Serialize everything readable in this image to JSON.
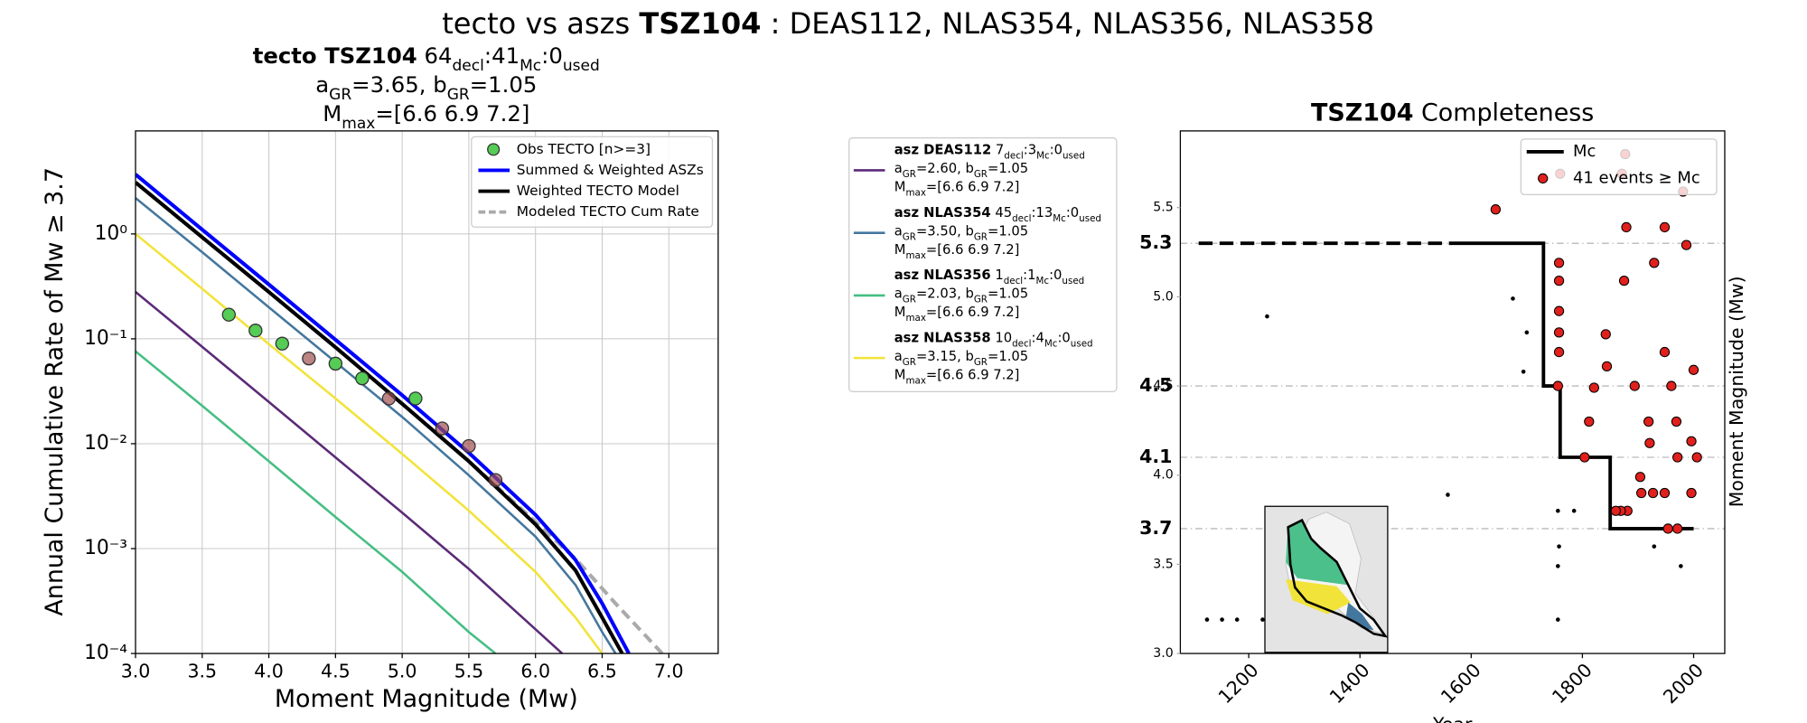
{
  "suptitle": [
    "tecto vs aszs ",
    {
      "b": "TSZ104"
    },
    " : DEAS112, NLAS354, NLAS356, NLAS358"
  ],
  "chart_data": [
    {
      "type": "line",
      "title": [
        [
          {
            "b": "tecto TSZ104"
          },
          "  64",
          {
            "sub": "decl"
          },
          ":41",
          {
            "sub": "Mc"
          },
          ":0",
          {
            "sub": "used"
          }
        ],
        [
          "a",
          {
            "sub": "GR"
          },
          "=3.65,  b",
          {
            "sub": "GR"
          },
          "=1.05"
        ],
        [
          "M",
          {
            "sub": "max"
          },
          "=[6.6 6.9 7.2]"
        ]
      ],
      "xlabel": "Moment Magnitude (Mw)",
      "ylabel": "Annual Cumulative Rate of Mw  ≥  3.7",
      "xlim": [
        3.0,
        7.37
      ],
      "ylim": [
        0.0001,
        9.6
      ],
      "log_y": true,
      "grid": true,
      "legend": "upper right",
      "xticks": [
        {
          "value": 3,
          "label": "3.0"
        },
        {
          "value": 3.5,
          "label": "3.5"
        },
        {
          "value": 4,
          "label": "4.0"
        },
        {
          "value": 4.5,
          "label": "4.5"
        },
        {
          "value": 5,
          "label": "5.0"
        },
        {
          "value": 5.5,
          "label": "5.5"
        },
        {
          "value": 6,
          "label": "6.0"
        },
        {
          "value": 6.5,
          "label": "6.5"
        },
        {
          "value": 7,
          "label": "7.0"
        }
      ],
      "yticks": [
        {
          "value": 0.0001,
          "label": "10⁻⁴"
        },
        {
          "value": 0.001,
          "label": "10⁻³"
        },
        {
          "value": 0.01,
          "label": "10⁻²"
        },
        {
          "value": 0.1,
          "label": "10⁻¹"
        },
        {
          "value": 1,
          "label": "10⁰"
        }
      ],
      "series": [
        {
          "name": "Obs TECTO [n>=3]",
          "kind": "scatter",
          "color": "#55cc55",
          "x": [
            3.7,
            3.9,
            4.1,
            4.5,
            4.7,
            5.1
          ],
          "values": [
            0.17,
            0.12,
            0.09,
            0.058,
            0.042,
            0.027
          ]
        },
        {
          "name": "Summed & Weighted ASZs",
          "kind": "line",
          "color": "#0000ff",
          "x": [
            3.0,
            3.5,
            4.0,
            4.5,
            5.0,
            5.5,
            6.0,
            6.3,
            6.5,
            6.7
          ],
          "values": [
            3.7,
            1.1,
            0.33,
            0.098,
            0.029,
            0.0082,
            0.0021,
            0.00078,
            0.0003,
            0.0001
          ]
        },
        {
          "name": "Weighted TECTO Model",
          "kind": "line",
          "color": "#000000",
          "x": [
            3.0,
            3.5,
            4.0,
            4.5,
            5.0,
            5.5,
            6.0,
            6.3,
            6.5,
            6.65
          ],
          "values": [
            3.1,
            0.93,
            0.28,
            0.083,
            0.024,
            0.0068,
            0.0017,
            0.00062,
            0.00022,
            0.0001
          ]
        },
        {
          "name": "Modeled TECTO Cum Rate",
          "kind": "line",
          "dash": true,
          "color": "#aaaaaa",
          "x": [
            3.0,
            3.5,
            4.0,
            4.5,
            5.0,
            5.5,
            6.0,
            6.3,
            6.6,
            6.95
          ],
          "values": [
            3.1,
            0.93,
            0.28,
            0.083,
            0.024,
            0.0068,
            0.0018,
            0.0008,
            0.0003,
            0.0001
          ]
        },
        {
          "kind": "scatter",
          "color": "#a05050",
          "x": [
            4.3,
            4.9,
            5.3,
            5.5,
            5.7
          ],
          "values": [
            0.065,
            0.027,
            0.014,
            0.0095,
            0.0045
          ]
        },
        {
          "legend": [
            [
              {
                "b": "asz DEAS112"
              },
              " 7",
              {
                "sub": "decl"
              },
              ":3",
              {
                "sub": "Mc"
              },
              ":0",
              {
                "sub": "used"
              }
            ],
            [
              "a",
              {
                "sub": "GR"
              },
              "=2.60,  b",
              {
                "sub": "GR"
              },
              "=1.05"
            ],
            [
              "M",
              {
                "sub": "max"
              },
              "=[6.6 6.9 7.2]"
            ]
          ],
          "kind": "line",
          "color": "#5b2a78",
          "x": [
            3.0,
            3.5,
            4.0,
            4.5,
            5.0,
            5.5,
            6.0,
            6.2
          ],
          "values": [
            0.28,
            0.084,
            0.025,
            0.0074,
            0.0022,
            0.00064,
            0.00017,
            0.0001
          ]
        },
        {
          "legend": [
            [
              {
                "b": "asz NLAS354"
              },
              " 45",
              {
                "sub": "decl"
              },
              ":13",
              {
                "sub": "Mc"
              },
              ":0",
              {
                "sub": "used"
              }
            ],
            [
              "a",
              {
                "sub": "GR"
              },
              "=3.50,  b",
              {
                "sub": "GR"
              },
              "=1.05"
            ],
            [
              "M",
              {
                "sub": "max"
              },
              "=[6.6 6.9 7.2]"
            ]
          ],
          "kind": "line",
          "color": "#44779e",
          "x": [
            3.0,
            3.5,
            4.0,
            4.5,
            5.0,
            5.5,
            6.0,
            6.3,
            6.5,
            6.6
          ],
          "values": [
            2.2,
            0.67,
            0.2,
            0.06,
            0.018,
            0.005,
            0.0013,
            0.00045,
            0.00016,
            0.0001
          ]
        },
        {
          "legend": [
            [
              {
                "b": "asz NLAS356"
              },
              " 1",
              {
                "sub": "decl"
              },
              ":1",
              {
                "sub": "Mc"
              },
              ":0",
              {
                "sub": "used"
              }
            ],
            [
              "a",
              {
                "sub": "GR"
              },
              "=2.03,  b",
              {
                "sub": "GR"
              },
              "=1.05"
            ],
            [
              "M",
              {
                "sub": "max"
              },
              "=[6.6 6.9 7.2]"
            ]
          ],
          "kind": "line",
          "color": "#45be83",
          "x": [
            3.0,
            3.5,
            4.0,
            4.5,
            5.0,
            5.5,
            5.7
          ],
          "values": [
            0.076,
            0.023,
            0.0068,
            0.002,
            0.0006,
            0.00016,
            0.0001
          ]
        },
        {
          "legend": [
            [
              {
                "b": "asz NLAS358"
              },
              " 10",
              {
                "sub": "decl"
              },
              ":4",
              {
                "sub": "Mc"
              },
              ":0",
              {
                "sub": "used"
              }
            ],
            [
              "a",
              {
                "sub": "GR"
              },
              "=3.15,  b",
              {
                "sub": "GR"
              },
              "=1.05"
            ],
            [
              "M",
              {
                "sub": "max"
              },
              "=[6.6 6.9 7.2]"
            ]
          ],
          "kind": "line",
          "color": "#f2e33a",
          "x": [
            3.0,
            3.5,
            4.0,
            4.5,
            5.0,
            5.5,
            6.0,
            6.3,
            6.5
          ],
          "values": [
            1.0,
            0.3,
            0.089,
            0.027,
            0.008,
            0.0023,
            0.0006,
            0.00022,
            0.0001
          ]
        }
      ]
    },
    {
      "type": "scatter",
      "title": [
        {
          "b": "TSZ104"
        },
        " Completeness"
      ],
      "xlabel": "Year",
      "ylabel": "Moment Magnitude (Mw)",
      "xlim": [
        1077,
        2056
      ],
      "ylim": [
        3.0,
        5.93
      ],
      "legend": "upper right",
      "xticks": [
        1200,
        1400,
        1600,
        1800,
        2000
      ],
      "yticks": [
        {
          "value": 3,
          "label": "3.0"
        },
        {
          "value": 3.5,
          "label": "3.5"
        },
        {
          "value": 4,
          "label": "4.0"
        },
        {
          "value": 4.5,
          "label": "4.5"
        },
        {
          "value": 5,
          "label": "5.0"
        },
        {
          "value": 5.5,
          "label": "5.5"
        }
      ],
      "mc_ticks": [
        3.7,
        4.1,
        4.5,
        5.3
      ],
      "series": [
        {
          "name": "Mc",
          "kind": "line",
          "color": "#000000",
          "x": [
            1580,
            1730,
            1730,
            1760,
            1760,
            1850,
            1850,
            2000
          ],
          "values": [
            5.3,
            5.3,
            4.5,
            4.5,
            4.1,
            4.1,
            3.7,
            3.7
          ]
        },
        {
          "name": "41 events ≥ Mc",
          "kind": "scatter",
          "color": "#e0201c",
          "marker_size": 4,
          "x": [
            1644,
            1758,
            1758,
            1758,
            1758,
            1758,
            1756,
            1760,
            1842,
            1844,
            1821,
            1812,
            1804,
            1879,
            1875,
            1894,
            1919,
            1921,
            1929,
            1948,
            1987,
            2000,
            1996,
            2006,
            1996,
            1971,
            1948,
            1927,
            1906,
            1904,
            1881,
            1869,
            1860,
            1954,
            1971,
            1969,
            1948,
            1981,
            1877,
            1871,
            1960
          ],
          "values": [
            5.49,
            5.19,
            5.09,
            4.92,
            4.8,
            4.69,
            4.5,
            5.69,
            4.79,
            4.61,
            4.49,
            4.3,
            4.1,
            5.39,
            5.09,
            4.5,
            4.3,
            4.18,
            5.19,
            4.69,
            5.29,
            4.59,
            4.19,
            4.1,
            3.9,
            4.1,
            3.9,
            3.9,
            3.9,
            3.99,
            3.8,
            3.8,
            3.8,
            3.7,
            3.7,
            4.3,
            5.39,
            5.59,
            5.8,
            5.69,
            4.5
          ]
        },
        {
          "kind": "line",
          "dash": true,
          "color": "#000000",
          "x": [
            1110,
            1580
          ],
          "values": [
            5.3,
            5.3
          ]
        },
        {
          "kind": "scatter",
          "color": "#000000",
          "marker_size": 1.8,
          "x": [
            1125,
            1152,
            1179,
            1225,
            1233,
            1558,
            1675,
            1700,
            1694,
            1756,
            1785,
            1758,
            1756,
            1756,
            1929,
            1977
          ],
          "values": [
            3.19,
            3.19,
            3.19,
            3.19,
            4.89,
            3.89,
            4.99,
            4.8,
            4.58,
            3.8,
            3.8,
            3.6,
            3.49,
            3.19,
            3.6,
            3.49
          ]
        }
      ]
    }
  ]
}
